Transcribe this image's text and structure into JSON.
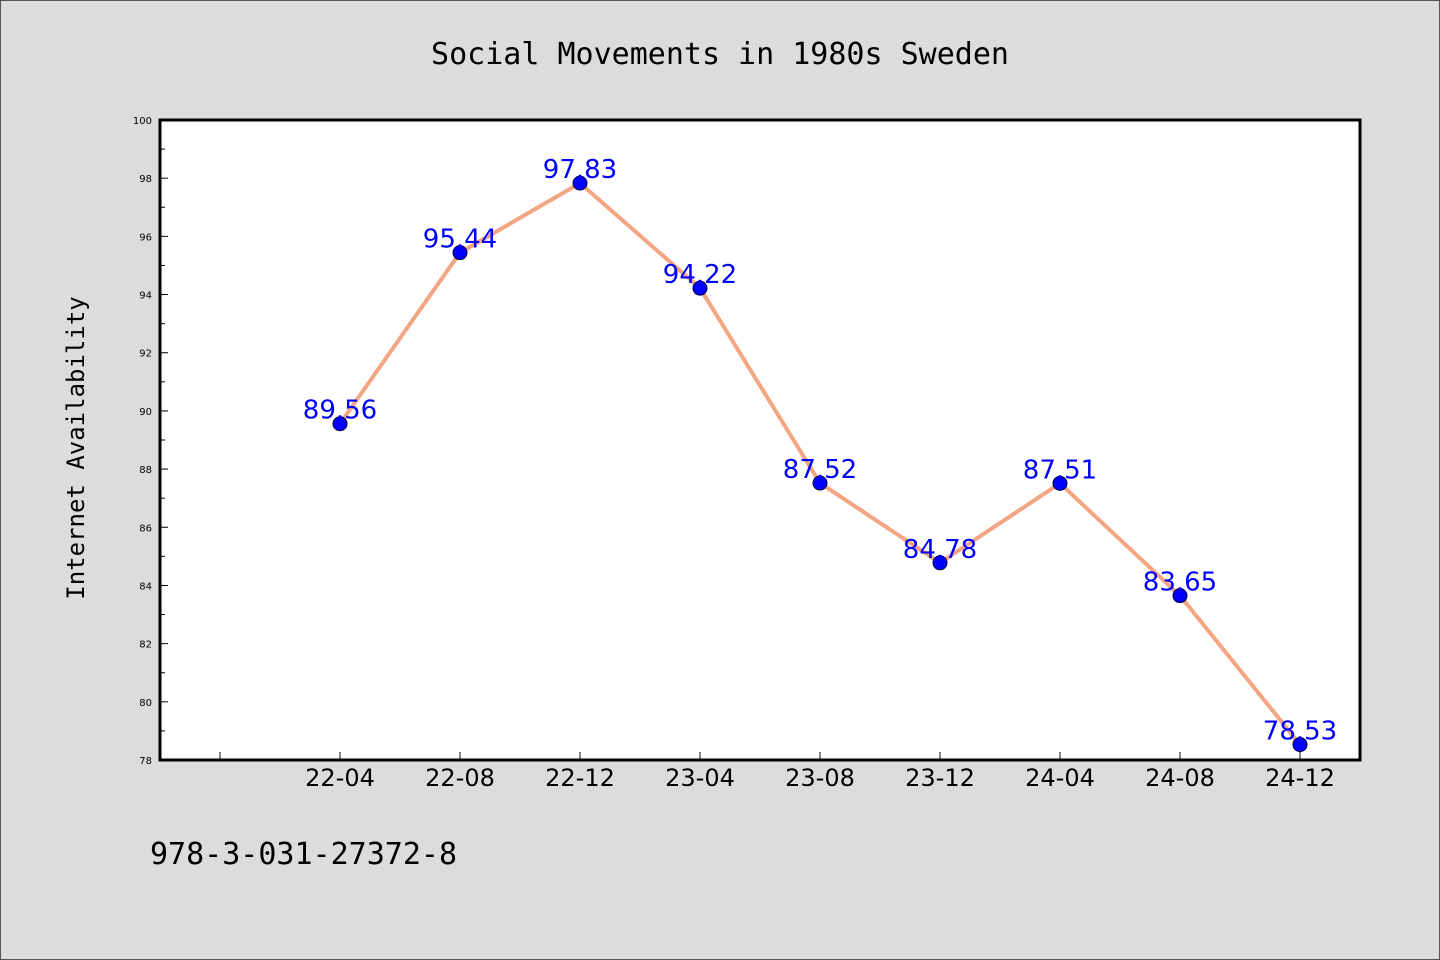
{
  "chart_data": {
    "type": "line",
    "title": "Social Movements in 1980s Sweden",
    "xlabel": "",
    "ylabel": "Internet Availability",
    "categories": [
      "22-04",
      "22-08",
      "22-12",
      "23-04",
      "23-08",
      "23-12",
      "24-04",
      "24-08",
      "24-12"
    ],
    "series": [
      {
        "values": [
          89.56,
          95.44,
          97.83,
          94.22,
          87.52,
          84.78,
          87.51,
          83.65,
          78.53
        ],
        "data_labels": [
          "89.56",
          "95.44",
          "97.83",
          "94.22",
          "87.52",
          "84.78",
          "87.51",
          "83.65",
          "78.53"
        ],
        "line_color": "#f4a582",
        "marker_color": "#0000ff"
      }
    ],
    "ylim": [
      78,
      100
    ],
    "yticks": [
      "78",
      "80",
      "82",
      "84",
      "86",
      "88",
      "90",
      "92",
      "94",
      "96",
      "98",
      "100"
    ],
    "grid": false,
    "legend": "none"
  },
  "footer_text": "978-3-031-27372-8",
  "colors": {
    "background": "#dcdcdc",
    "plot_background": "#ffffff",
    "line": "#f4a582",
    "marker": "#0000ff",
    "data_label": "#0000ff"
  }
}
